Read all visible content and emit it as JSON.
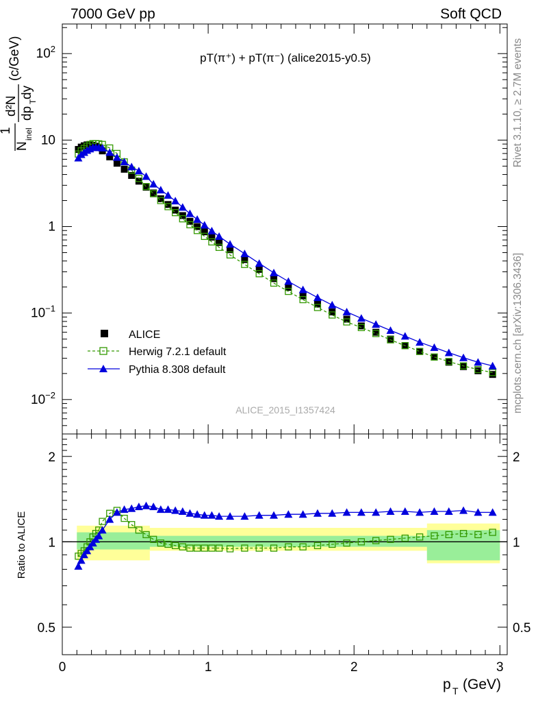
{
  "header": {
    "left": "7000 GeV pp",
    "right": "Soft QCD"
  },
  "side_labels": {
    "rivet": "Rivet 3.1.10, ≥ 2.7M events",
    "mcplots": "mcplots.cern.ch [arXiv:1306.3436]"
  },
  "chart_data": [
    {
      "type": "scatter",
      "panel": "main",
      "title": "pT(π⁺) + pT(π⁻) (alice2015-y0.5)",
      "watermark": "ALICE_2015_I1357424",
      "ylabel": "1/N_inel d²N/dp_T dy (c/GeV)",
      "yscale": "log",
      "ylim": [
        0.004,
        220
      ],
      "xlim": [
        0,
        3.05
      ],
      "ytick_labels": [
        "10^-2",
        "10^-1",
        "1",
        "10",
        "10^2"
      ],
      "legend_position": "bottom-left",
      "legend": [
        "ALICE",
        "Herwig 7.2.1 default",
        "Pythia 8.308 default"
      ],
      "x": [
        0.11,
        0.13,
        0.15,
        0.17,
        0.19,
        0.21,
        0.23,
        0.25,
        0.275,
        0.325,
        0.375,
        0.425,
        0.475,
        0.525,
        0.575,
        0.625,
        0.675,
        0.725,
        0.775,
        0.825,
        0.875,
        0.925,
        0.975,
        1.025,
        1.075,
        1.15,
        1.25,
        1.35,
        1.45,
        1.55,
        1.65,
        1.75,
        1.85,
        1.95,
        2.05,
        2.15,
        2.25,
        2.35,
        2.45,
        2.55,
        2.65,
        2.75,
        2.85,
        2.95
      ],
      "series": [
        {
          "name": "ALICE",
          "color": "#000000",
          "marker": "filled-square",
          "values": [
            7.8,
            8.3,
            8.6,
            8.8,
            8.8,
            8.7,
            8.5,
            8.2,
            7.5,
            6.4,
            5.4,
            4.6,
            3.9,
            3.35,
            2.85,
            2.45,
            2.1,
            1.8,
            1.55,
            1.34,
            1.15,
            1.0,
            0.87,
            0.755,
            0.655,
            0.54,
            0.415,
            0.32,
            0.25,
            0.198,
            0.158,
            0.127,
            0.103,
            0.085,
            0.071,
            0.06,
            0.05,
            0.042,
            0.036,
            0.031,
            0.027,
            0.024,
            0.0215,
            0.0195
          ]
        },
        {
          "name": "Herwig 7.2.1 default",
          "color": "#339900",
          "marker": "open-square",
          "line": "dashed",
          "values": [
            6.9,
            7.5,
            8.0,
            8.5,
            8.9,
            9.1,
            9.1,
            9.05,
            8.9,
            8.1,
            7.0,
            5.6,
            4.5,
            3.6,
            2.9,
            2.4,
            2.0,
            1.7,
            1.45,
            1.23,
            1.05,
            0.9,
            0.77,
            0.665,
            0.575,
            0.47,
            0.365,
            0.285,
            0.222,
            0.178,
            0.143,
            0.116,
            0.095,
            0.079,
            0.068,
            0.058,
            0.049,
            0.042,
            0.036,
            0.031,
            0.0275,
            0.0245,
            0.0222,
            0.0205
          ]
        },
        {
          "name": "Pythia 8.308 default",
          "color": "#0000dd",
          "marker": "filled-triangle",
          "line": "solid",
          "values": [
            6.2,
            6.8,
            7.2,
            7.6,
            7.9,
            8.2,
            8.2,
            8.2,
            8.1,
            7.2,
            6.3,
            5.6,
            4.9,
            4.4,
            3.8,
            3.1,
            2.65,
            2.3,
            1.98,
            1.67,
            1.41,
            1.21,
            1.04,
            0.89,
            0.77,
            0.625,
            0.485,
            0.375,
            0.292,
            0.232,
            0.186,
            0.151,
            0.124,
            0.103,
            0.087,
            0.074,
            0.063,
            0.054,
            0.046,
            0.04,
            0.0348,
            0.0305,
            0.027,
            0.0245
          ]
        }
      ]
    },
    {
      "type": "scatter",
      "panel": "ratio",
      "xlabel": "p_T (GeV)",
      "ylabel": "Ratio to ALICE",
      "ylim": [
        0.4,
        2.4
      ],
      "xlim": [
        0,
        3.05
      ],
      "x_ticks": [
        "0",
        "1",
        "2",
        "3"
      ],
      "y_ticks": [
        "0.5",
        "1",
        "2"
      ],
      "reference_line": 1,
      "bands": [
        {
          "name": "stat",
          "color": "#99ee99",
          "x": [
            0.1,
            0.6,
            2.5,
            3.0
          ],
          "lower": [
            0.94,
            0.96,
            0.86,
            0.86
          ],
          "upper": [
            1.08,
            1.05,
            1.1,
            1.1
          ]
        },
        {
          "name": "total",
          "color": "#ffff99",
          "x": [
            0.1,
            0.6,
            2.5,
            3.0
          ],
          "lower": [
            0.86,
            0.93,
            0.84,
            0.84
          ],
          "upper": [
            1.14,
            1.12,
            1.16,
            1.18
          ]
        }
      ],
      "x": [
        0.11,
        0.13,
        0.15,
        0.17,
        0.19,
        0.21,
        0.23,
        0.25,
        0.275,
        0.325,
        0.375,
        0.425,
        0.475,
        0.525,
        0.575,
        0.625,
        0.675,
        0.725,
        0.775,
        0.825,
        0.875,
        0.925,
        0.975,
        1.025,
        1.075,
        1.15,
        1.25,
        1.35,
        1.45,
        1.55,
        1.65,
        1.75,
        1.85,
        1.95,
        2.05,
        2.15,
        2.25,
        2.35,
        2.45,
        2.55,
        2.65,
        2.75,
        2.85,
        2.95
      ],
      "series": [
        {
          "name": "Herwig 7.2.1 default",
          "color": "#339900",
          "marker": "open-square",
          "line": "dashed",
          "values": [
            0.89,
            0.91,
            0.93,
            0.96,
            1.0,
            1.04,
            1.07,
            1.1,
            1.18,
            1.26,
            1.29,
            1.21,
            1.15,
            1.1,
            1.06,
            1.02,
            0.99,
            0.98,
            0.97,
            0.96,
            0.95,
            0.95,
            0.95,
            0.95,
            0.95,
            0.945,
            0.95,
            0.95,
            0.95,
            0.96,
            0.96,
            0.97,
            0.98,
            0.99,
            1.0,
            1.01,
            1.02,
            1.03,
            1.04,
            1.05,
            1.06,
            1.07,
            1.06,
            1.08
          ]
        },
        {
          "name": "Pythia 8.308 default",
          "color": "#0000dd",
          "marker": "filled-triangle",
          "line": "solid",
          "values": [
            0.82,
            0.86,
            0.9,
            0.93,
            0.96,
            0.99,
            1.02,
            1.05,
            1.1,
            1.2,
            1.27,
            1.3,
            1.31,
            1.33,
            1.34,
            1.33,
            1.3,
            1.3,
            1.29,
            1.28,
            1.26,
            1.25,
            1.24,
            1.24,
            1.23,
            1.23,
            1.23,
            1.24,
            1.24,
            1.25,
            1.25,
            1.26,
            1.26,
            1.27,
            1.27,
            1.27,
            1.28,
            1.28,
            1.27,
            1.28,
            1.28,
            1.29,
            1.27,
            1.27
          ]
        }
      ]
    }
  ]
}
